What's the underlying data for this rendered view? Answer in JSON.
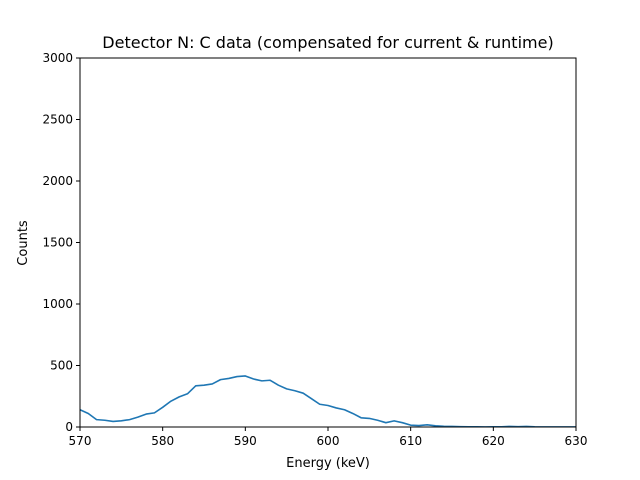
{
  "chart_data": {
    "type": "line",
    "title": "Detector N: C data (compensated for current & runtime)",
    "xlabel": "Energy (keV)",
    "ylabel": "Counts",
    "xlim": [
      570,
      630
    ],
    "ylim": [
      0,
      3000
    ],
    "x_ticks": [
      570,
      580,
      590,
      600,
      610,
      620,
      630
    ],
    "y_ticks": [
      0,
      500,
      1000,
      1500,
      2000,
      2500,
      3000
    ],
    "grid": false,
    "series": [
      {
        "color": "#1f77b4",
        "x": [
          570,
          571,
          572,
          573,
          574,
          575,
          576,
          577,
          578,
          579,
          580,
          581,
          582,
          583,
          584,
          585,
          586,
          587,
          588,
          589,
          590,
          591,
          592,
          593,
          594,
          595,
          596,
          597,
          598,
          599,
          600,
          601,
          602,
          603,
          604,
          605,
          606,
          607,
          608,
          609,
          610,
          611,
          612,
          613,
          614,
          615,
          616,
          617,
          618,
          619,
          620,
          621,
          622,
          623,
          624,
          625,
          626,
          627,
          628,
          629,
          630
        ],
        "y": [
          140,
          110,
          60,
          55,
          45,
          50,
          60,
          80,
          105,
          115,
          160,
          210,
          245,
          270,
          335,
          340,
          350,
          385,
          395,
          410,
          415,
          390,
          375,
          380,
          340,
          310,
          295,
          275,
          230,
          185,
          175,
          155,
          140,
          110,
          75,
          70,
          55,
          35,
          50,
          35,
          15,
          12,
          18,
          10,
          6,
          5,
          3,
          2,
          2,
          1,
          2,
          2,
          5,
          3,
          5,
          2,
          1,
          1,
          1,
          1,
          1
        ]
      }
    ]
  }
}
